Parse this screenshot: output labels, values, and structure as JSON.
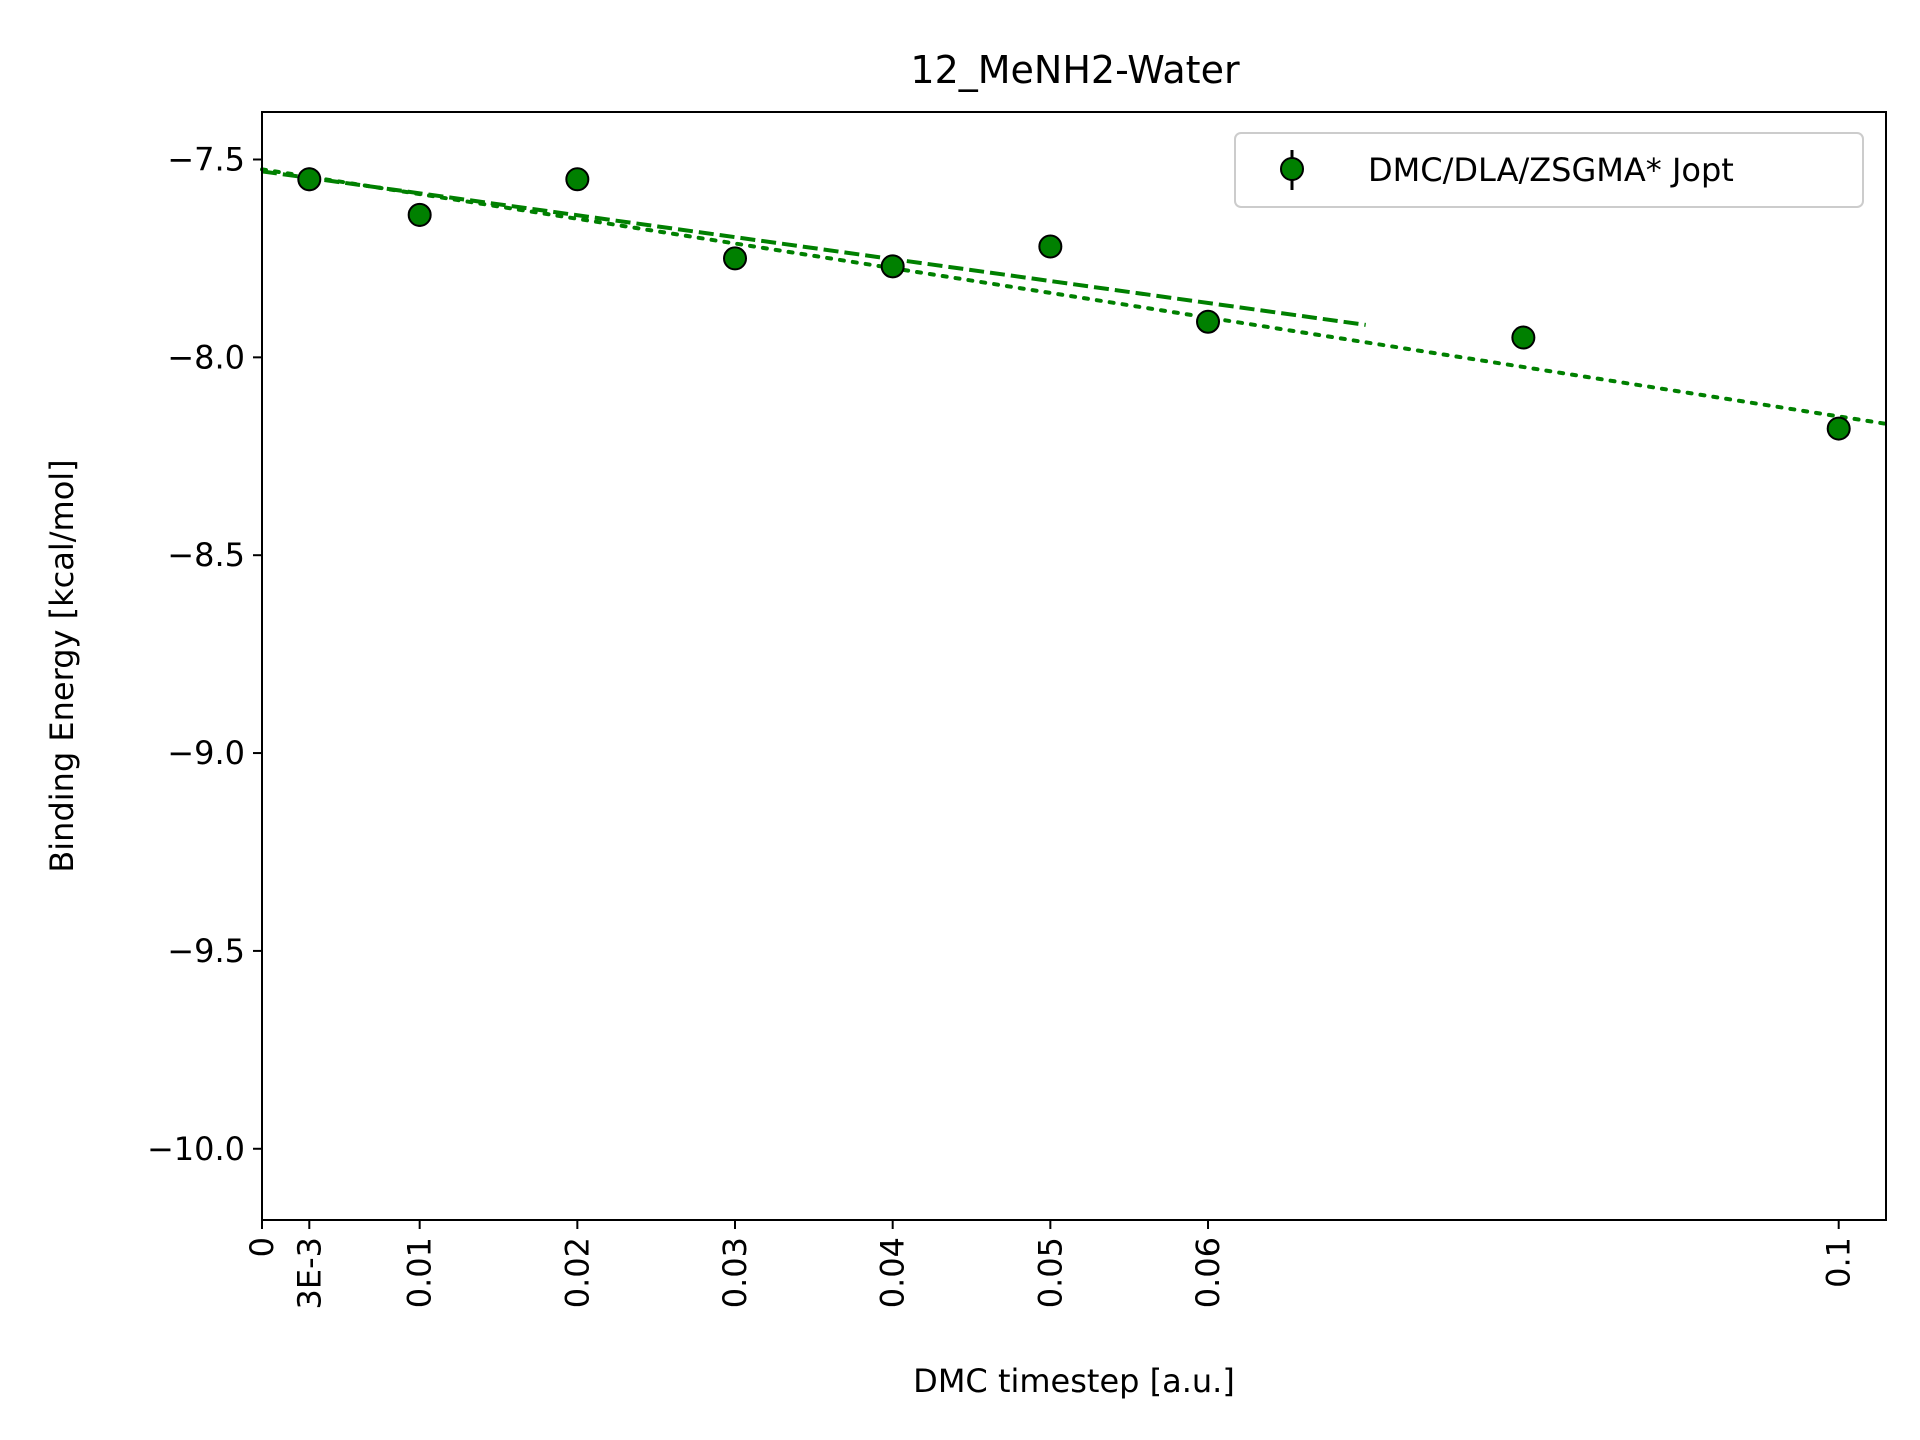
{
  "chart_data": {
    "type": "scatter",
    "title": "12_MeNH2-Water",
    "xlabel": "DMC timestep [a.u.]",
    "ylabel": "Binding Energy [kcal/mol]",
    "xlim": [
      0,
      0.103
    ],
    "ylim": [
      -10.18,
      -7.38
    ],
    "x_ticks": [
      {
        "value": 0,
        "label": "0"
      },
      {
        "value": 0.003,
        "label": "3E-3"
      },
      {
        "value": 0.01,
        "label": "0.01"
      },
      {
        "value": 0.02,
        "label": "0.02"
      },
      {
        "value": 0.03,
        "label": "0.03"
      },
      {
        "value": 0.04,
        "label": "0.04"
      },
      {
        "value": 0.05,
        "label": "0.05"
      },
      {
        "value": 0.06,
        "label": "0.06"
      },
      {
        "value": 0.1,
        "label": "0.1"
      }
    ],
    "y_ticks": [
      {
        "value": -7.5,
        "label": "−7.5"
      },
      {
        "value": -8.0,
        "label": "−8.0"
      },
      {
        "value": -8.5,
        "label": "−8.5"
      },
      {
        "value": -9.0,
        "label": "−9.0"
      },
      {
        "value": -9.5,
        "label": "−9.5"
      },
      {
        "value": -10.0,
        "label": "−10.0"
      }
    ],
    "grid": false,
    "legend_position": "top-right",
    "series": [
      {
        "name": "DMC/DLA/ZSGMA* Jopt",
        "color": "#008000",
        "edge_color": "#000000",
        "x": [
          0.003,
          0.01,
          0.02,
          0.03,
          0.04,
          0.05,
          0.06,
          0.08,
          0.1
        ],
        "y": [
          -7.55,
          -7.64,
          -7.55,
          -7.75,
          -7.77,
          -7.72,
          -7.91,
          -7.95,
          -8.18
        ],
        "yerr": [
          0.03,
          0.03,
          0.025,
          0.022,
          0.022,
          0.025,
          0.025,
          0.025,
          0.028
        ]
      }
    ],
    "fits": [
      {
        "style": "dashed",
        "color": "#008000",
        "x": [
          0,
          0.07
        ],
        "y": [
          -7.53,
          -7.918
        ]
      },
      {
        "style": "dotted",
        "color": "#008000",
        "x": [
          0,
          0.103
        ],
        "y": [
          -7.525,
          -8.168
        ]
      }
    ]
  }
}
